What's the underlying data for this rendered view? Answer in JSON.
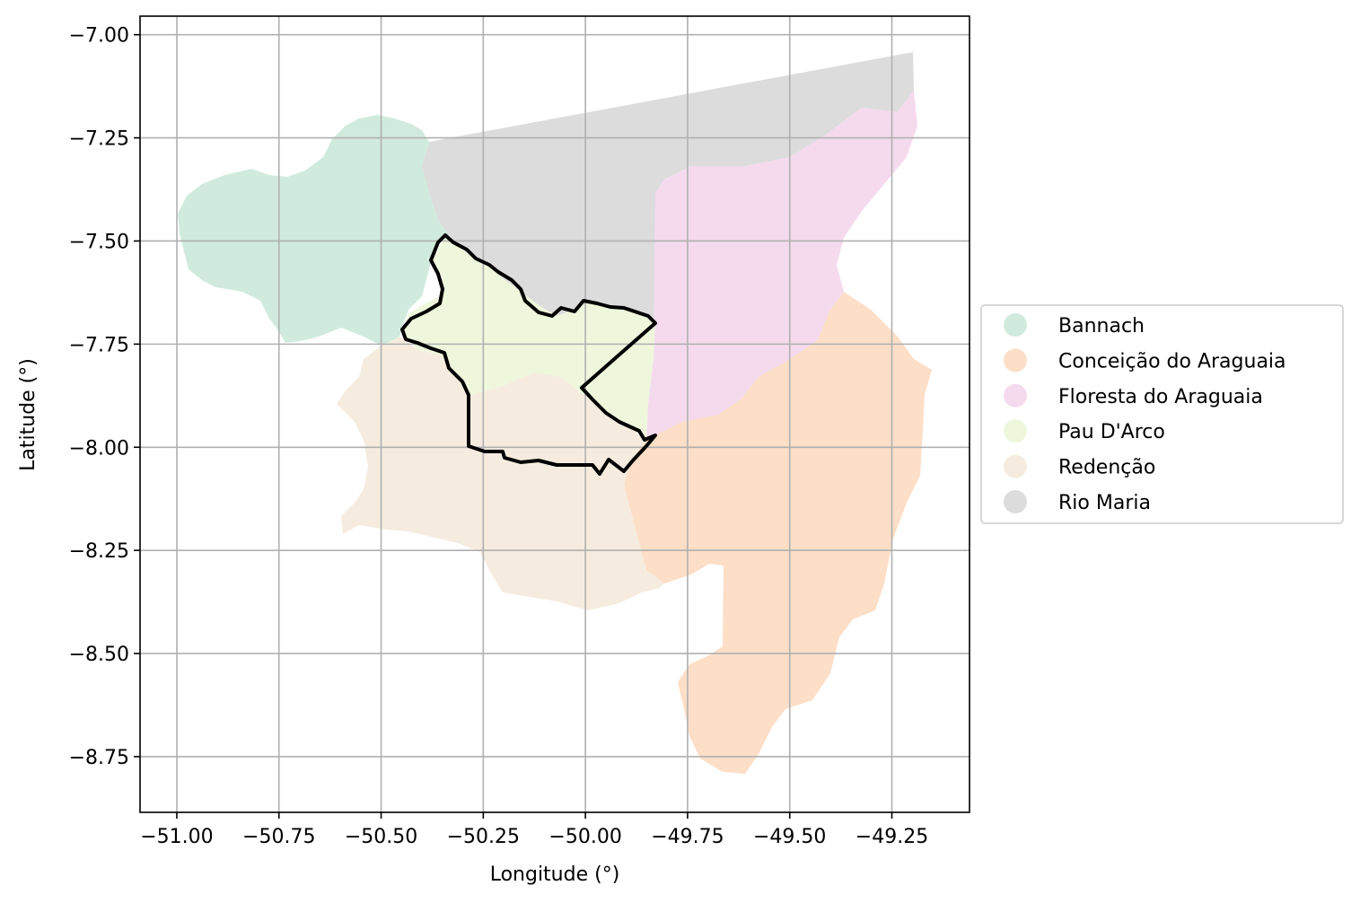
{
  "chart_data": {
    "type": "map",
    "xlabel": "Longitude (°)",
    "ylabel": "Latitude (°)",
    "xlim": [
      -51.09,
      -49.06
    ],
    "ylim": [
      -8.885,
      -6.955
    ],
    "grid": true,
    "x_ticks": [
      -51.0,
      -50.75,
      -50.5,
      -50.25,
      -50.0,
      -49.75,
      -49.5,
      -49.25
    ],
    "x_tick_labels": [
      "−51.00",
      "−50.75",
      "−50.50",
      "−50.25",
      "−50.00",
      "−49.75",
      "−49.50",
      "−49.25"
    ],
    "y_ticks": [
      -7.0,
      -7.25,
      -7.5,
      -7.75,
      -8.0,
      -8.25,
      -8.5,
      -8.75
    ],
    "y_tick_labels": [
      "−7.00",
      "−7.25",
      "−7.50",
      "−7.75",
      "−8.00",
      "−8.25",
      "−8.50",
      "−8.75"
    ],
    "legend_position": "outside-right",
    "highlighted_region": "Pau D'Arco",
    "regions": [
      {
        "name": "Bannach",
        "color": "#d0ebdd"
      },
      {
        "name": "Conceição do Araguaia",
        "color": "#fddec7"
      },
      {
        "name": "Floresta do Araguaia",
        "color": "#f5daee"
      },
      {
        "name": "Pau D'Arco",
        "color": "#eef7dc"
      },
      {
        "name": "Redenção",
        "color": "#f5ecdf"
      },
      {
        "name": "Rio Maria",
        "color": "#dcdcdc"
      }
    ]
  }
}
